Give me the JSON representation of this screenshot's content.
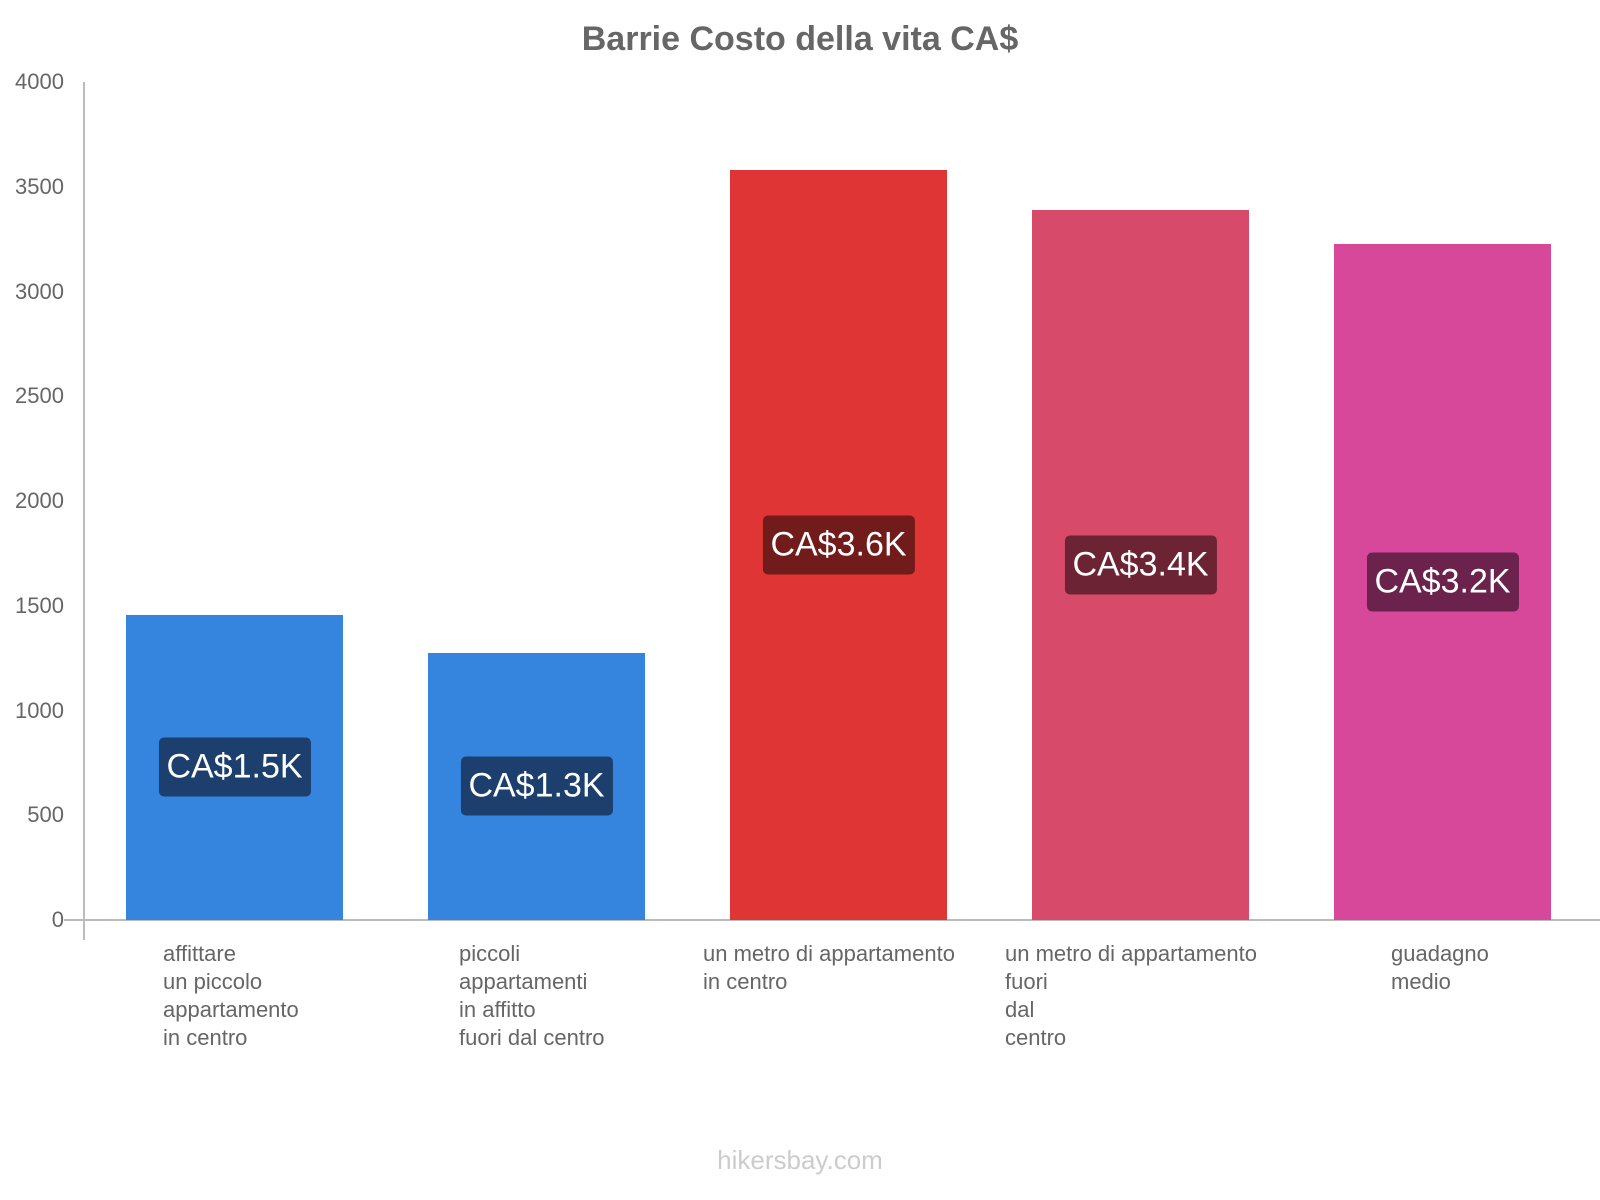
{
  "title": "Barrie Costo della vita CA$",
  "footer": "hikersbay.com",
  "y_ticks": [
    "0",
    "500",
    "1000",
    "1500",
    "2000",
    "2500",
    "3000",
    "3500",
    "4000"
  ],
  "bars": [
    {
      "label": "affittare\nun piccolo\nappartamento\nin centro",
      "value": 1457,
      "value_label": "CA$1.5K",
      "color": "#3584de",
      "label_bg": "#1c3f6e"
    },
    {
      "label": "piccoli\nappartamenti\nin affitto\nfuori dal centro",
      "value": 1276,
      "value_label": "CA$1.3K",
      "color": "#3584de",
      "label_bg": "#1c3f6e"
    },
    {
      "label": "un metro di appartamento\nin centro",
      "value": 3579,
      "value_label": "CA$3.6K",
      "color": "#e03535",
      "label_bg": "#721b1b"
    },
    {
      "label": "un metro di appartamento\nfuori\ndal\ncentro",
      "value": 3389,
      "value_label": "CA$3.4K",
      "color": "#d84a69",
      "label_bg": "#6c2435"
    },
    {
      "label": "guadagno\nmedio",
      "value": 3227,
      "value_label": "CA$3.2K",
      "color": "#d7489b",
      "label_bg": "#6b234e"
    }
  ],
  "chart_data": {
    "type": "bar",
    "title": "Barrie Costo della vita CA$",
    "xlabel": "",
    "ylabel": "",
    "ylim": [
      0,
      4000
    ],
    "grid": false,
    "legend": null,
    "categories": [
      "affittare un piccolo appartamento in centro",
      "piccoli appartamenti in affitto fuori dal centro",
      "un metro di appartamento in centro",
      "un metro di appartamento fuori dal centro",
      "guadagno medio"
    ],
    "values": [
      1457,
      1276,
      3579,
      3389,
      3227
    ],
    "data_labels": [
      "CA$1.5K",
      "CA$1.3K",
      "CA$3.6K",
      "CA$3.4K",
      "CA$3.2K"
    ],
    "y_ticks": [
      0,
      500,
      1000,
      1500,
      2000,
      2500,
      3000,
      3500,
      4000
    ],
    "colors": [
      "#3584de",
      "#3584de",
      "#e03535",
      "#d84a69",
      "#d7489b"
    ]
  }
}
